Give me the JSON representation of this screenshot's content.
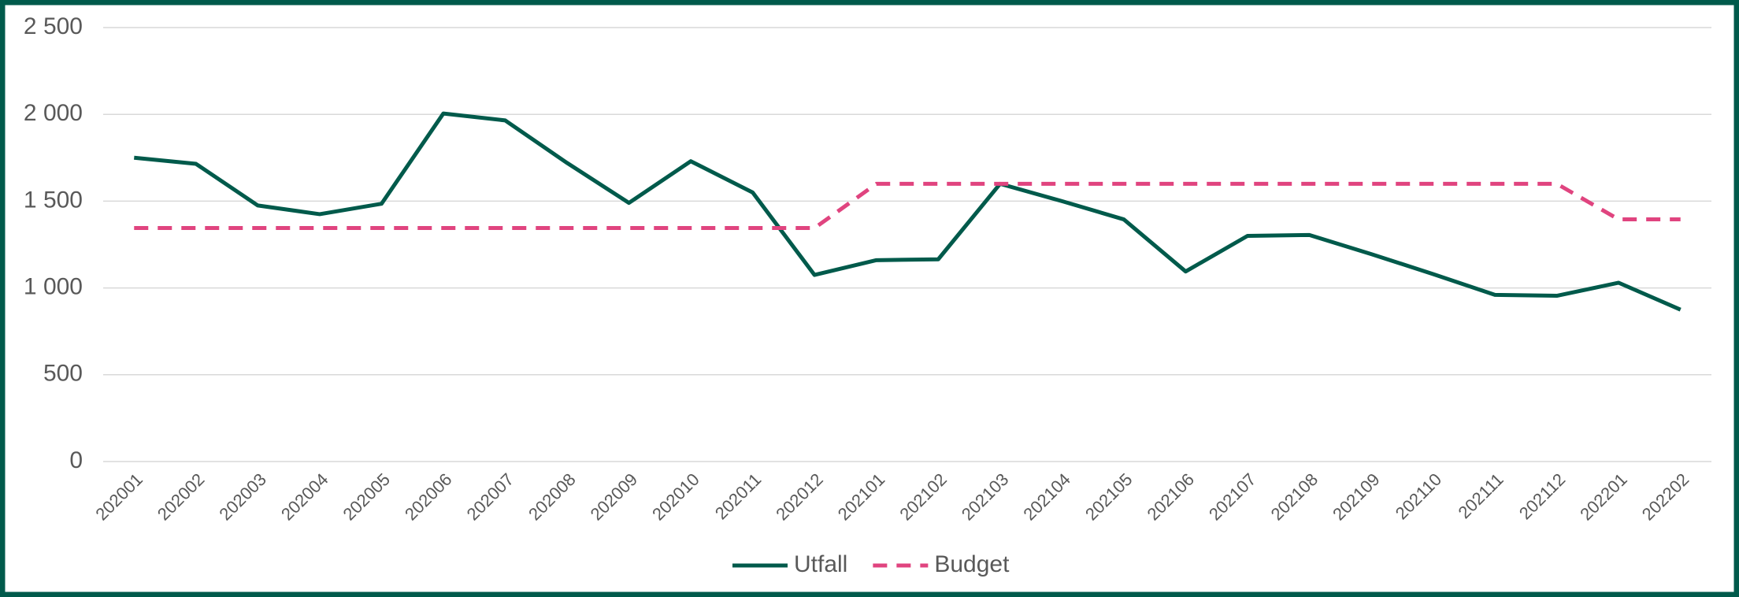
{
  "chart_data": {
    "type": "line",
    "categories": [
      "202001",
      "202002",
      "202003",
      "202004",
      "202005",
      "202006",
      "202007",
      "202008",
      "202009",
      "202010",
      "202011",
      "202012",
      "202101",
      "202102",
      "202103",
      "202104",
      "202105",
      "202106",
      "202107",
      "202108",
      "202109",
      "202110",
      "202111",
      "202112",
      "202201",
      "202202"
    ],
    "series": [
      {
        "name": "Utfall",
        "color": "#005a4b",
        "dash": false,
        "values": [
          1750,
          1715,
          1475,
          1425,
          1485,
          2005,
          1965,
          1720,
          1490,
          1730,
          1550,
          1075,
          1160,
          1165,
          1600,
          1500,
          1395,
          1095,
          1300,
          1305,
          1195,
          1080,
          960,
          955,
          1030,
          875
        ]
      },
      {
        "name": "Budget",
        "color": "#e0447f",
        "dash": true,
        "values": [
          1345,
          1345,
          1345,
          1345,
          1345,
          1345,
          1345,
          1345,
          1345,
          1345,
          1345,
          1345,
          1600,
          1600,
          1600,
          1600,
          1600,
          1600,
          1600,
          1600,
          1600,
          1600,
          1600,
          1600,
          1395,
          1395
        ]
      }
    ],
    "ylim": [
      0,
      2500
    ],
    "yticks": [
      0,
      500,
      {
        "value": 1000,
        "label": "1 000"
      },
      {
        "value": 1500,
        "label": "1 500"
      },
      {
        "value": 2000,
        "label": "2 000"
      },
      {
        "value": 2500,
        "label": "2 500"
      }
    ],
    "grid": true,
    "legend": "bottom"
  }
}
